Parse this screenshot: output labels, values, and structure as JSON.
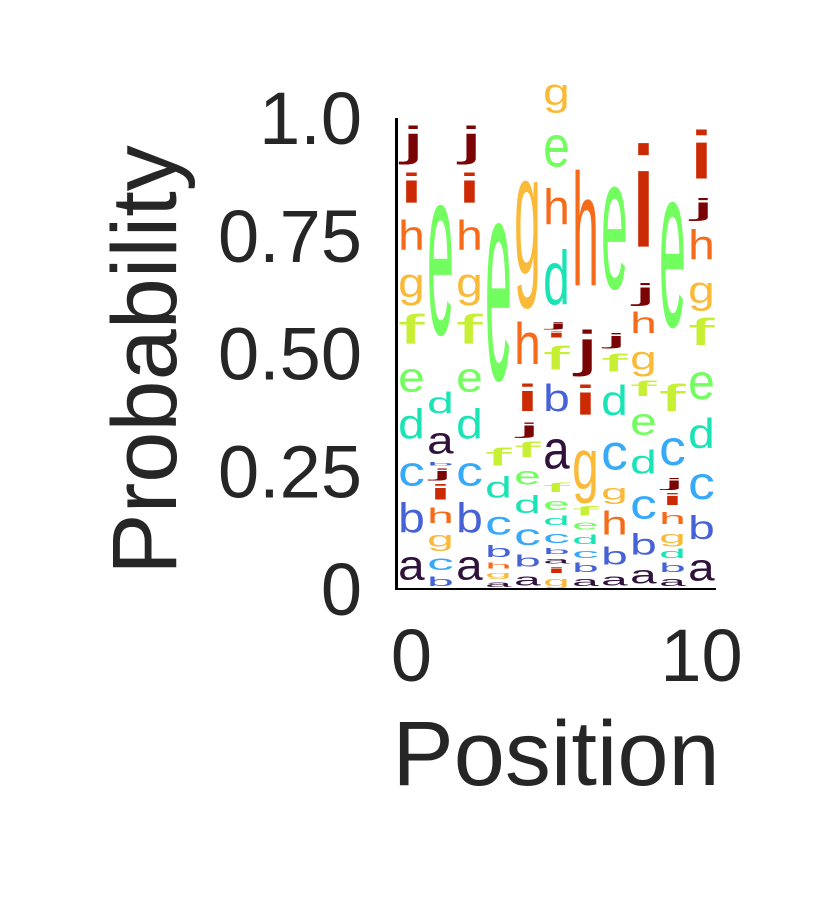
{
  "chart_data": {
    "type": "sequence-logo",
    "title": "",
    "xlabel": "Position",
    "ylabel": "Probability",
    "xlim": [
      -0.5,
      10.5
    ],
    "ylim": [
      0,
      1
    ],
    "xticks": [
      0,
      10
    ],
    "xtick_labels": [
      "0",
      "10"
    ],
    "yticks": [
      0,
      0.25,
      0.5,
      0.75,
      1.0
    ],
    "ytick_labels": [
      "0",
      "0.25",
      "0.50",
      "0.75",
      "1.0"
    ],
    "grid": false,
    "legend": "none",
    "alphabet": [
      "a",
      "b",
      "c",
      "d",
      "e",
      "f",
      "g",
      "h",
      "i",
      "j"
    ],
    "colors": {
      "a": "#30123b",
      "b": "#4662d7",
      "c": "#36aaf9",
      "d": "#1ae4b6",
      "e": "#72fe5e",
      "f": "#c7ef34",
      "g": "#faba39",
      "h": "#f66b19",
      "i": "#cb2a04",
      "j": "#7a0403"
    },
    "positions": [
      0,
      1,
      2,
      3,
      4,
      5,
      6,
      7,
      8,
      9,
      10
    ],
    "probabilities": [
      {
        "a": 0.1,
        "b": 0.1,
        "c": 0.1,
        "d": 0.1,
        "e": 0.1,
        "f": 0.1,
        "g": 0.1,
        "h": 0.1,
        "i": 0.1,
        "j": 0.1
      },
      {
        "b": 0.03,
        "c": 0.05,
        "a": 0.05,
        "g": 0.03,
        "h": 0.05,
        "i": 0.04,
        "j": 0.03,
        "d": 0.1,
        "a2": 0,
        "f": 0.08,
        "e": 0.58
      },
      {
        "a": 0.1,
        "b": 0.1,
        "c": 0.1,
        "d": 0.1,
        "e": 0.1,
        "f": 0.1,
        "g": 0.1,
        "h": 0.1,
        "i": 0.1,
        "j": 0.1
      },
      {
        "a": 0.02,
        "g": 0.02,
        "h": 0.02,
        "b": 0.03,
        "c": 0.06,
        "d": 0.05,
        "f": 0.06,
        "e": 0.74
      },
      {
        "a": 0.05,
        "b": 0.04,
        "c": 0.06,
        "d": 0.04,
        "e": 0.05,
        "f": 0.04,
        "j": 0.03,
        "i": 0.08,
        "h": 0.12,
        "g": 0.49
      },
      {
        "g": 0.02,
        "i": 0.03,
        "a": 0.02,
        "b": 0.03,
        "c": 0.05,
        "d": 0.03,
        "e": 0.03,
        "a3": 0,
        "b2": 0,
        "f": 0.04
      },
      {
        "a": 0.03,
        "b": 0.02,
        "c": 0.03,
        "d": 0.03,
        "e": 0.02,
        "f": 0.03,
        "g": 0.15,
        "i": 0.08,
        "j": 0.13,
        "h": 0.48
      },
      {
        "a": 0.05,
        "b": 0.05,
        "h": 0.05,
        "g": 0.05,
        "c": 0.1,
        "d": 0.08,
        "f": 0.07,
        "j": 0.03,
        "e": 0.52
      },
      {
        "a": 0.06,
        "b": 0.06,
        "c": 0.08,
        "d": 0.07,
        "e": 0.06,
        "f": 0.05,
        "g": 0.07,
        "h": 0.08,
        "j": 0.08,
        "i": 0.39
      },
      {
        "a": 0.03,
        "b": 0.03,
        "d": 0.04,
        "g": 0.04,
        "h": 0.05,
        "i": 0.03,
        "j": 0.03,
        "c": 0.1,
        "f": 0.1,
        "e": 0.55
      },
      {
        "a": 0.09,
        "b": 0.08,
        "c": 0.1,
        "d": 0.09,
        "e": 0.11,
        "f": 0.1,
        "g": 0.08,
        "h": 0.1,
        "j": 0.09,
        "i": 0.16
      }
    ],
    "stacks": [
      [
        [
          "a",
          0.1
        ],
        [
          "b",
          0.1
        ],
        [
          "c",
          0.1
        ],
        [
          "d",
          0.1
        ],
        [
          "e",
          0.1
        ],
        [
          "f",
          0.1
        ],
        [
          "g",
          0.1
        ],
        [
          "h",
          0.1
        ],
        [
          "i",
          0.1
        ],
        [
          "j",
          0.1
        ]
      ],
      [
        [
          "b",
          0.03
        ],
        [
          "c",
          0.05
        ],
        [
          "g",
          0.05
        ],
        [
          "h",
          0.05
        ],
        [
          "i",
          0.05
        ],
        [
          "j",
          0.03
        ],
        [
          "b",
          0.01
        ],
        [
          "a",
          0.09
        ],
        [
          "d",
          0.07
        ],
        [
          "e",
          0.57
        ]
      ],
      [
        [
          "a",
          0.1
        ],
        [
          "b",
          0.1
        ],
        [
          "c",
          0.1
        ],
        [
          "d",
          0.1
        ],
        [
          "e",
          0.1
        ],
        [
          "f",
          0.1
        ],
        [
          "g",
          0.1
        ],
        [
          "h",
          0.1
        ],
        [
          "i",
          0.1
        ],
        [
          "j",
          0.1
        ]
      ],
      [
        [
          "a",
          0.02
        ],
        [
          "g",
          0.02
        ],
        [
          "h",
          0.02
        ],
        [
          "b",
          0.04
        ],
        [
          "c",
          0.08
        ],
        [
          "d",
          0.07
        ],
        [
          "f",
          0.06
        ],
        [
          "e",
          0.69
        ]
      ],
      [
        [
          "a",
          0.04
        ],
        [
          "b",
          0.04
        ],
        [
          "c",
          0.07
        ],
        [
          "d",
          0.06
        ],
        [
          "e",
          0.06
        ],
        [
          "f",
          0.05
        ],
        [
          "j",
          0.04
        ],
        [
          "i",
          0.09
        ],
        [
          "h",
          0.14
        ],
        [
          "g",
          0.41
        ]
      ],
      [
        [
          "g",
          0.03
        ],
        [
          "i",
          0.02
        ],
        [
          "a",
          0.02
        ],
        [
          "b",
          0.02
        ],
        [
          "c",
          0.04
        ],
        [
          "d",
          0.03
        ],
        [
          "e",
          0.04
        ],
        [
          "f",
          0.03
        ],
        [
          "a",
          0.13
        ],
        [
          "b",
          0.09
        ],
        [
          "f",
          0.08
        ],
        [
          "i",
          0.02
        ],
        [
          "j",
          0.02
        ],
        [
          "d",
          0.18
        ],
        [
          "h",
          0.12
        ],
        [
          "e",
          0.14
        ],
        [
          "g",
          0.09
        ]
      ],
      [
        [
          "a",
          0.03
        ],
        [
          "b",
          0.03
        ],
        [
          "c",
          0.03
        ],
        [
          "d",
          0.03
        ],
        [
          "e",
          0.03
        ],
        [
          "f",
          0.03
        ],
        [
          "g",
          0.17
        ],
        [
          "i",
          0.1
        ],
        [
          "j",
          0.12
        ],
        [
          "h",
          0.38
        ]
      ],
      [
        [
          "a",
          0.04
        ],
        [
          "b",
          0.06
        ],
        [
          "h",
          0.08
        ],
        [
          "g",
          0.05
        ],
        [
          "c",
          0.12
        ],
        [
          "d",
          0.1
        ],
        [
          "f",
          0.06
        ],
        [
          "j",
          0.04
        ],
        [
          "e",
          0.45
        ]
      ],
      [
        [
          "a",
          0.06
        ],
        [
          "b",
          0.07
        ],
        [
          "c",
          0.1
        ],
        [
          "d",
          0.08
        ],
        [
          "e",
          0.09
        ],
        [
          "f",
          0.05
        ],
        [
          "g",
          0.08
        ],
        [
          "h",
          0.07
        ],
        [
          "j",
          0.06
        ],
        [
          "i",
          0.34
        ]
      ],
      [
        [
          "a",
          0.03
        ],
        [
          "b",
          0.03
        ],
        [
          "d",
          0.03
        ],
        [
          "g",
          0.04
        ],
        [
          "h",
          0.04
        ],
        [
          "i",
          0.04
        ],
        [
          "j",
          0.03
        ],
        [
          "c",
          0.12
        ],
        [
          "f",
          0.09
        ],
        [
          "e",
          0.55
        ]
      ],
      [
        [
          "a",
          0.09
        ],
        [
          "b",
          0.08
        ],
        [
          "c",
          0.11
        ],
        [
          "d",
          0.1
        ],
        [
          "e",
          0.12
        ],
        [
          "f",
          0.09
        ],
        [
          "g",
          0.09
        ],
        [
          "h",
          0.1
        ],
        [
          "j",
          0.06
        ],
        [
          "i",
          0.16
        ]
      ]
    ]
  }
}
